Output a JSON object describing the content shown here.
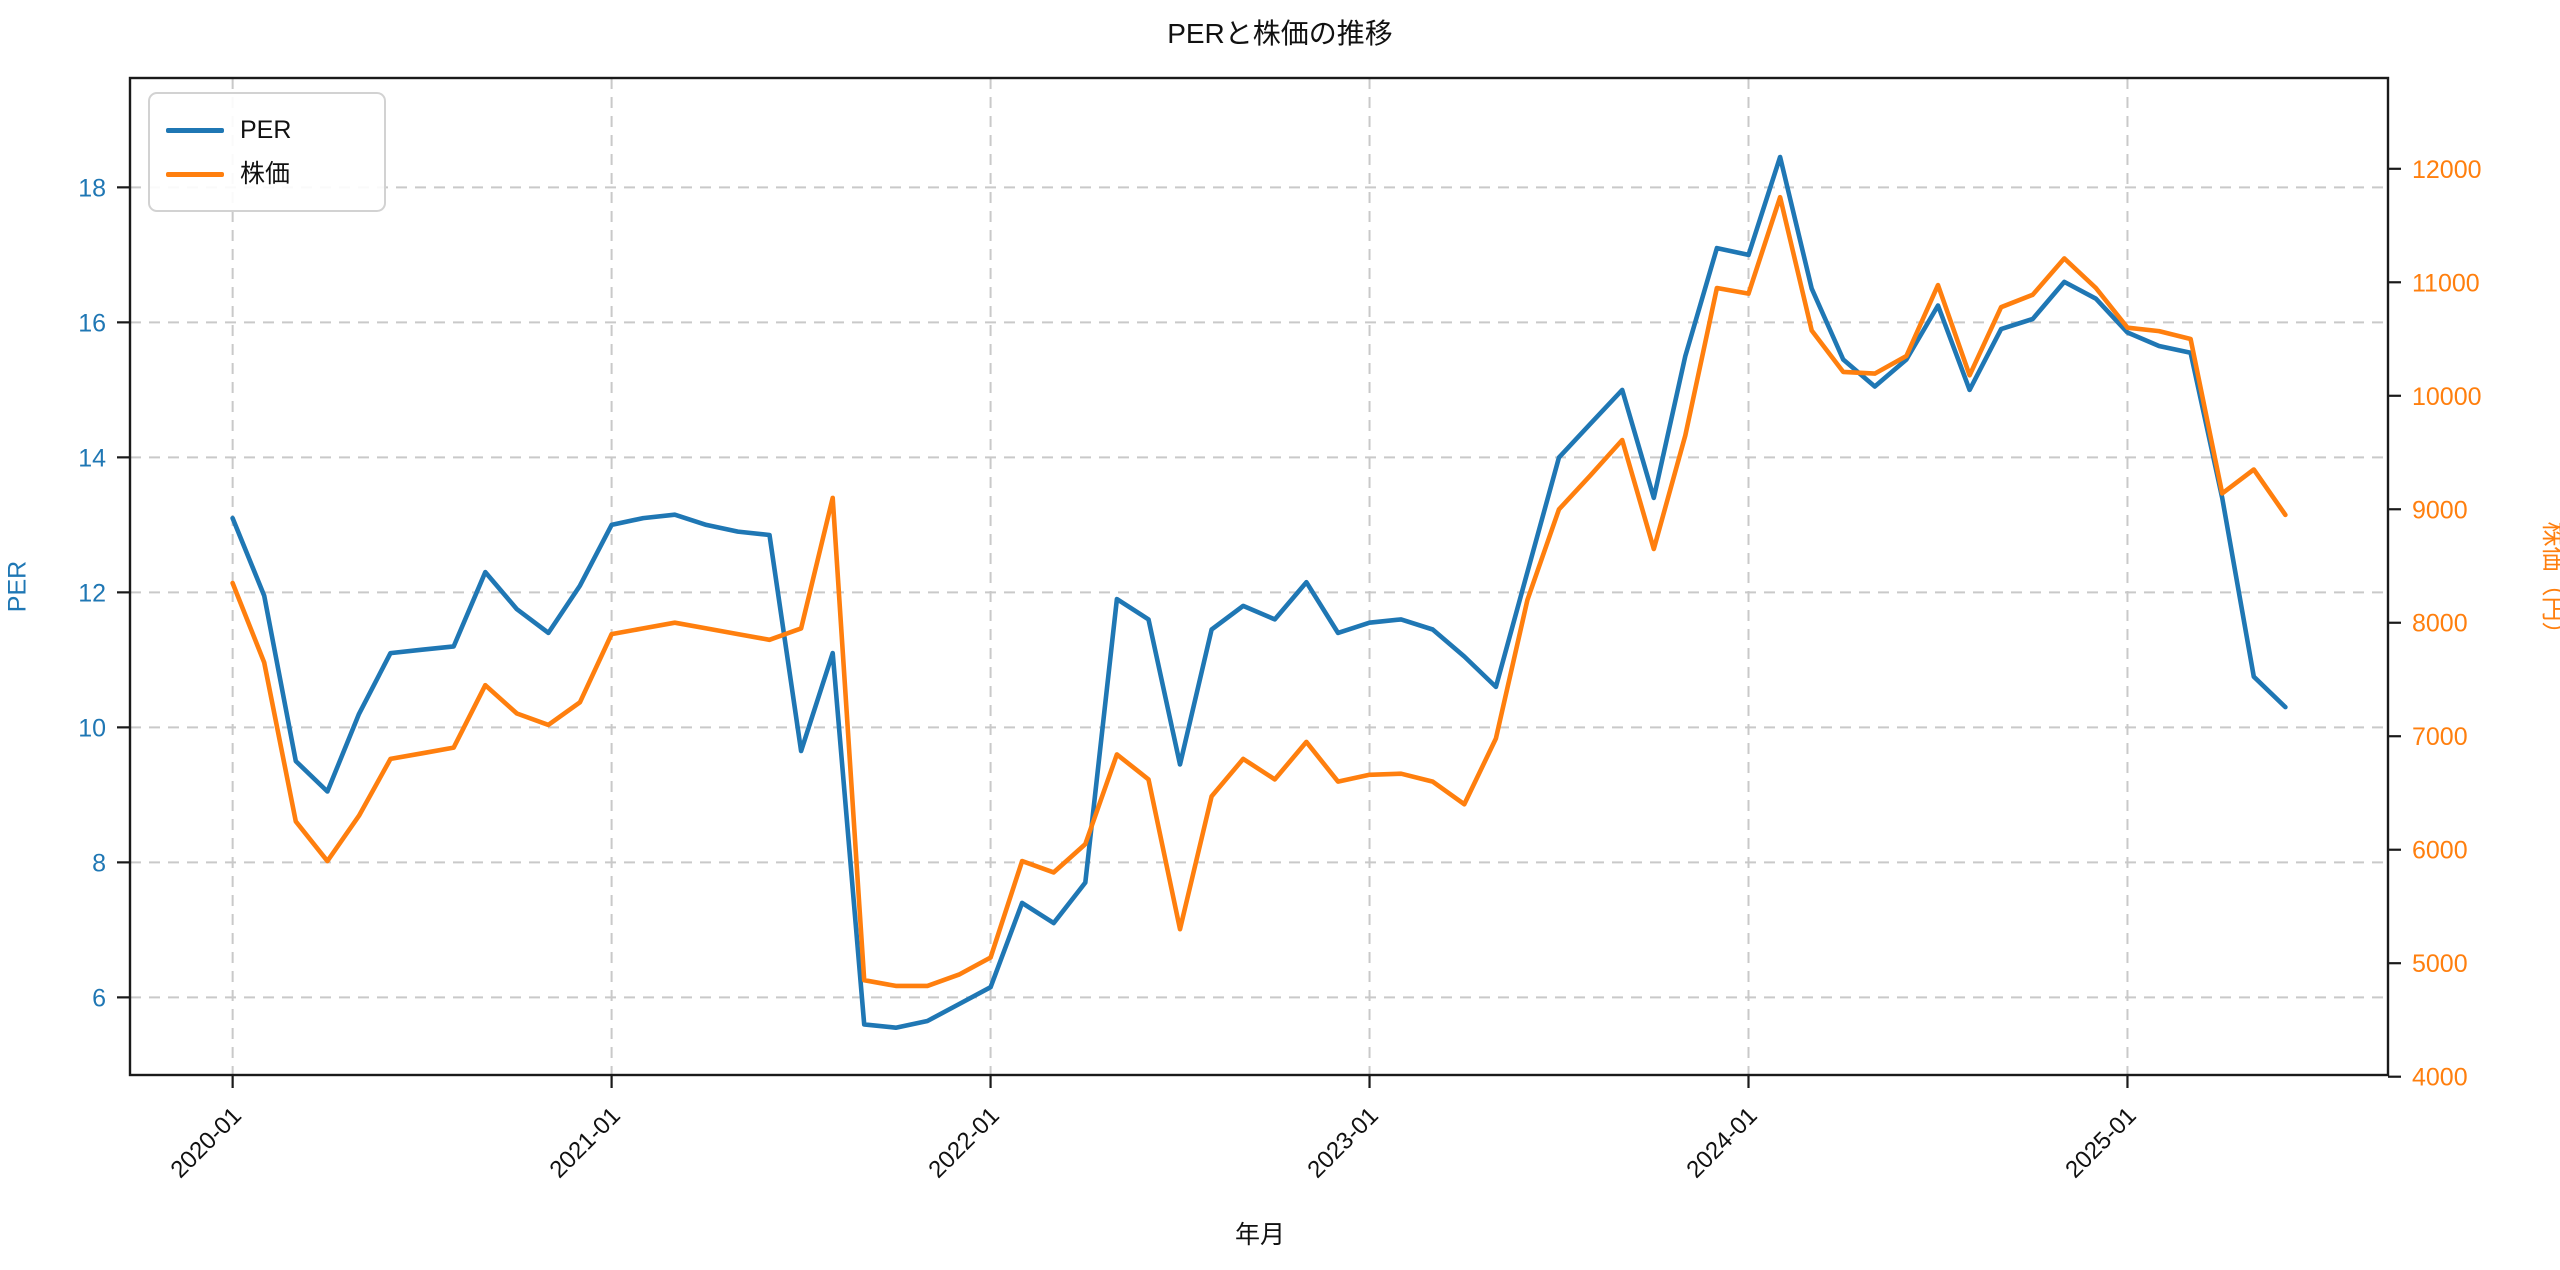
{
  "chart_data": {
    "type": "line",
    "title": "PERと株価の推移",
    "xlabel": "年月",
    "ylabel_left": "PER",
    "ylabel_right": "株価（円）",
    "grid": true,
    "legend_position": "top-left",
    "x": [
      "2020-01",
      "2020-02",
      "2020-03",
      "2020-04",
      "2020-05",
      "2020-06",
      "2020-07",
      "2020-08",
      "2020-09",
      "2020-10",
      "2020-11",
      "2020-12",
      "2021-01",
      "2021-02",
      "2021-03",
      "2021-04",
      "2021-05",
      "2021-06",
      "2021-07",
      "2021-08",
      "2021-09",
      "2021-10",
      "2021-11",
      "2021-12",
      "2022-01",
      "2022-02",
      "2022-03",
      "2022-04",
      "2022-05",
      "2022-06",
      "2022-07",
      "2022-08",
      "2022-09",
      "2022-10",
      "2022-11",
      "2022-12",
      "2023-01",
      "2023-02",
      "2023-03",
      "2023-04",
      "2023-05",
      "2023-06",
      "2023-07",
      "2023-08",
      "2023-09",
      "2023-10",
      "2023-11",
      "2023-12",
      "2024-01",
      "2024-02",
      "2024-03",
      "2024-04",
      "2024-05",
      "2024-06",
      "2024-07",
      "2024-08",
      "2024-09",
      "2024-10",
      "2024-11",
      "2024-12",
      "2025-01",
      "2025-02",
      "2025-03",
      "2025-04",
      "2025-05",
      "2025-06"
    ],
    "x_tick_labels": [
      "2020-01",
      "2021-01",
      "2022-01",
      "2023-01",
      "2024-01",
      "2025-01"
    ],
    "x_tick_indices": [
      0,
      12,
      24,
      36,
      48,
      60
    ],
    "series": [
      {
        "name": "PER",
        "axis": "left",
        "color": "#1f77b4",
        "values": [
          13.1,
          11.95,
          9.5,
          9.05,
          10.2,
          11.1,
          11.15,
          11.2,
          12.3,
          11.75,
          11.4,
          12.1,
          13.0,
          13.1,
          13.15,
          13.0,
          12.9,
          12.85,
          9.65,
          11.1,
          5.6,
          5.55,
          5.65,
          5.9,
          6.15,
          7.4,
          7.1,
          7.7,
          11.9,
          11.6,
          9.45,
          11.45,
          11.8,
          11.6,
          12.15,
          11.4,
          11.55,
          11.6,
          11.45,
          11.05,
          10.6,
          12.3,
          14.0,
          14.5,
          15.0,
          13.4,
          15.5,
          17.1,
          17.0,
          18.45,
          16.5,
          15.45,
          15.05,
          15.45,
          16.25,
          15.0,
          15.9,
          16.05,
          16.6,
          16.35,
          15.85,
          15.65,
          15.55,
          13.4,
          10.75,
          10.3
        ]
      },
      {
        "name": "株価",
        "axis": "right",
        "color": "#ff7f0e",
        "values": [
          8350,
          7650,
          6250,
          5900,
          6300,
          6800,
          6850,
          6900,
          7450,
          7200,
          7100,
          7300,
          7900,
          7950,
          8000,
          7950,
          7900,
          7850,
          7950,
          9100,
          4850,
          4800,
          4800,
          4900,
          5050,
          5900,
          5800,
          6050,
          6840,
          6620,
          5300,
          6470,
          6800,
          6620,
          6950,
          6600,
          6660,
          6670,
          6600,
          6400,
          6980,
          8200,
          9000,
          9300,
          9610,
          8650,
          9650,
          10950,
          10900,
          11750,
          10575,
          10210,
          10195,
          10350,
          10975,
          10180,
          10780,
          10890,
          11210,
          10950,
          10600,
          10570,
          10500,
          9140,
          9350,
          8950
        ]
      }
    ],
    "ylim_left": [
      4.85,
      19.62
    ],
    "yticks_left": [
      6,
      8,
      10,
      12,
      14,
      16,
      18
    ],
    "ylim_right": [
      4015,
      12800
    ],
    "yticks_right": [
      4000,
      5000,
      6000,
      7000,
      8000,
      9000,
      10000,
      11000,
      12000
    ]
  },
  "legend": {
    "items": [
      {
        "label": "PER",
        "color": "#1f77b4"
      },
      {
        "label": "株価",
        "color": "#ff7f0e"
      }
    ]
  },
  "colors": {
    "left_axis": "#1f77b4",
    "right_axis": "#ff7f0e",
    "grid": "#c9c9c9",
    "spine": "#1a1a1a",
    "text": "#111111"
  }
}
